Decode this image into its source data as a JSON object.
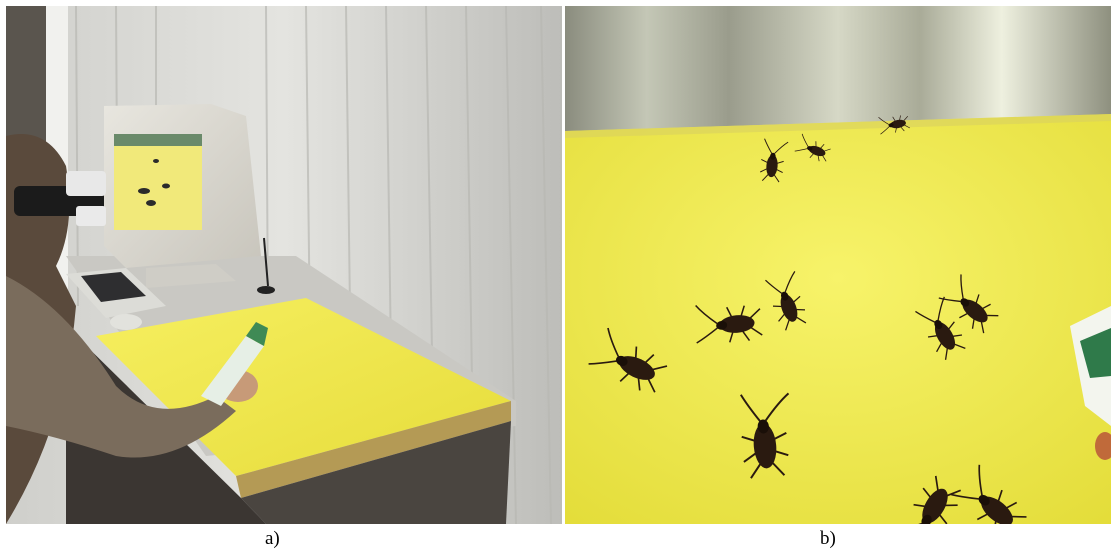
{
  "figure": {
    "panels": [
      {
        "id": "a",
        "caption": "a)",
        "content": "photo-user-hmd-insecticide-monitor"
      },
      {
        "id": "b",
        "caption": "b)",
        "content": "ar-view-virtual-cockroaches-yellow-table"
      }
    ]
  },
  "colors": {
    "table_yellow": "#f2ec4a",
    "wall_white": "#e6e6e2",
    "curtain": "#d4d4d0",
    "cockroach": "#2a1a10",
    "background": "#ffffff"
  }
}
